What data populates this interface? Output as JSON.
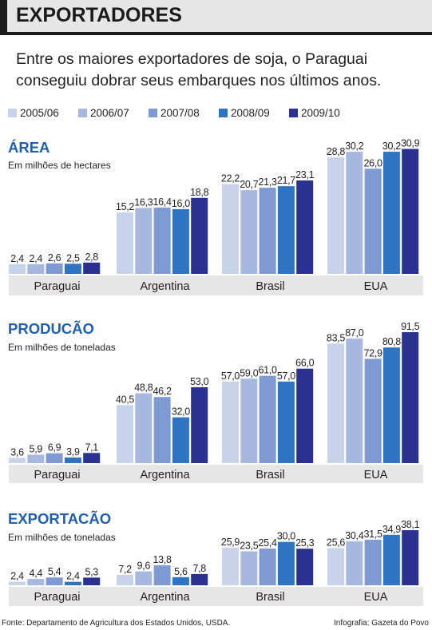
{
  "header": {
    "title": "EXPORTADORES"
  },
  "subtitle": "Entre os maiores exportadores de soja, o Paraguai conseguiu dobrar seus embarques nos últimos anos.",
  "legend": {
    "items": [
      {
        "label": "2005/06",
        "color": "#c7d3ea"
      },
      {
        "label": "2006/07",
        "color": "#a6b8e0"
      },
      {
        "label": "2007/08",
        "color": "#7f9ad2"
      },
      {
        "label": "2008/09",
        "color": "#2f74c2"
      },
      {
        "label": "2009/10",
        "color": "#2b3190"
      }
    ]
  },
  "chart_data": [
    {
      "type": "bar",
      "title": "ÁREA",
      "ylabel": "Em milhões de hectares",
      "categories": [
        "Paraguai",
        "Argentina",
        "Brasil",
        "EUA"
      ],
      "ylim": [
        0,
        31
      ],
      "series": [
        {
          "name": "2005/06",
          "values": [
            2.4,
            15.2,
            22.2,
            28.8
          ],
          "labels": [
            "2,4",
            "15,2",
            "22,2",
            "28,8"
          ]
        },
        {
          "name": "2006/07",
          "values": [
            2.4,
            16.3,
            20.7,
            30.2
          ],
          "labels": [
            "2,4",
            "16,3",
            "20,7",
            "30,2"
          ]
        },
        {
          "name": "2007/08",
          "values": [
            2.6,
            16.4,
            21.3,
            26.0
          ],
          "labels": [
            "2,6",
            "16,4",
            "21,3",
            "26,0"
          ]
        },
        {
          "name": "2008/09",
          "values": [
            2.5,
            16.0,
            21.7,
            30.2
          ],
          "labels": [
            "2,5",
            "16,0",
            "21,7",
            "30,2"
          ]
        },
        {
          "name": "2009/10",
          "values": [
            2.8,
            18.8,
            23.1,
            30.9
          ],
          "labels": [
            "2,8",
            "18,8",
            "23,1",
            "30,9"
          ]
        }
      ]
    },
    {
      "type": "bar",
      "title": "PRODUCÃO",
      "ylabel": "Em milhões de toneladas",
      "categories": [
        "Paraguai",
        "Argentina",
        "Brasil",
        "EUA"
      ],
      "ylim": [
        0,
        91.5
      ],
      "series": [
        {
          "name": "2005/06",
          "values": [
            3.6,
            40.5,
            57.0,
            83.5
          ],
          "labels": [
            "3,6",
            "40,5",
            "57,0",
            "83,5"
          ]
        },
        {
          "name": "2006/07",
          "values": [
            5.9,
            48.8,
            59.0,
            87.0
          ],
          "labels": [
            "5,9",
            "48,8",
            "59,0",
            "87,0"
          ]
        },
        {
          "name": "2007/08",
          "values": [
            6.9,
            46.2,
            61.0,
            72.9
          ],
          "labels": [
            "6,9",
            "46,2",
            "61,0",
            "72,9"
          ]
        },
        {
          "name": "2008/09",
          "values": [
            3.9,
            32.0,
            57.0,
            80.8
          ],
          "labels": [
            "3,9",
            "32,0",
            "57,0",
            "80,8"
          ]
        },
        {
          "name": "2009/10",
          "values": [
            7.1,
            53.0,
            66.0,
            91.5
          ],
          "labels": [
            "7,1",
            "53,0",
            "66,0",
            "91,5"
          ]
        }
      ]
    },
    {
      "type": "bar",
      "title": "EXPORTACÃO",
      "ylabel": "Em milhões de toneladas",
      "categories": [
        "Paraguai",
        "Argentina",
        "Brasil",
        "EUA"
      ],
      "ylim": [
        0,
        38.1
      ],
      "series": [
        {
          "name": "2005/06",
          "values": [
            2.4,
            7.2,
            25.9,
            25.6
          ],
          "labels": [
            "2,4",
            "7,2",
            "25,9",
            "25,6"
          ]
        },
        {
          "name": "2006/07",
          "values": [
            4.4,
            9.6,
            23.5,
            30.4
          ],
          "labels": [
            "4,4",
            "9,6",
            "23,5",
            "30,4"
          ]
        },
        {
          "name": "2007/08",
          "values": [
            5.4,
            13.8,
            25.4,
            31.5
          ],
          "labels": [
            "5,4",
            "13,8",
            "25,4",
            "31,5"
          ]
        },
        {
          "name": "2008/09",
          "values": [
            2.4,
            5.6,
            30.0,
            34.9
          ],
          "labels": [
            "2,4",
            "5,6",
            "30,0",
            "34,9"
          ]
        },
        {
          "name": "2009/10",
          "values": [
            5.3,
            7.8,
            25.3,
            38.1
          ],
          "labels": [
            "5,3",
            "7,8",
            "25,3",
            "38,1"
          ]
        }
      ]
    }
  ],
  "footer": {
    "source": "Fonte: Departamento de Agricultura dos Estados Unidos, USDA.",
    "credit": "Infografia: Gazeta do Povo"
  }
}
